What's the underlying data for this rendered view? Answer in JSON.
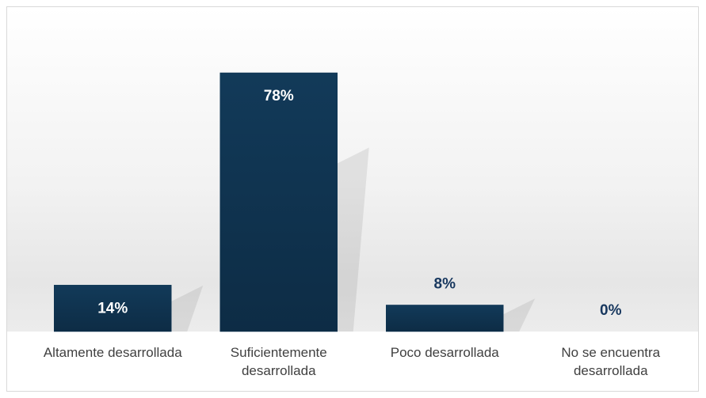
{
  "chart_data": {
    "type": "bar",
    "categories": [
      "Altamente desarrollada",
      "Suficientemente desarrollada",
      "Poco desarrollada",
      "No se encuentra desarrollada"
    ],
    "values": [
      14,
      78,
      8,
      0
    ],
    "value_labels": [
      "14%",
      "78%",
      "8%",
      "0%"
    ],
    "color": "#0f3553"
  }
}
